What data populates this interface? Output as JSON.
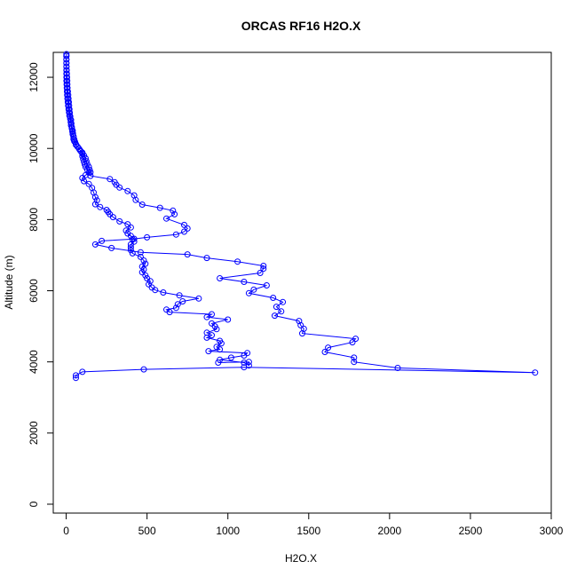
{
  "chart_data": {
    "type": "line",
    "title": "ORCAS RF16 H2O.X",
    "xlabel": "H2O.X",
    "ylabel": "Altitude (m)",
    "xlim": [
      -80,
      3000
    ],
    "ylim": [
      -250,
      12700
    ],
    "x_ticks": [
      0,
      500,
      1000,
      1500,
      2000,
      2500,
      3000
    ],
    "y_ticks": [
      0,
      2000,
      4000,
      6000,
      8000,
      10000,
      12000
    ],
    "grid": false,
    "legend": "none",
    "series": [
      {
        "color": "#0000ff",
        "marker": "open-circle",
        "line": true,
        "points": [
          [
            60,
            3550
          ],
          [
            60,
            3620
          ],
          [
            100,
            3720
          ],
          [
            480,
            3790
          ],
          [
            1100,
            3850
          ],
          [
            2900,
            3700
          ],
          [
            2050,
            3830
          ],
          [
            1780,
            4000
          ],
          [
            1780,
            4120
          ],
          [
            1600,
            4280
          ],
          [
            1620,
            4400
          ],
          [
            1770,
            4550
          ],
          [
            1790,
            4650
          ],
          [
            1460,
            4800
          ],
          [
            1470,
            4930
          ],
          [
            1450,
            5030
          ],
          [
            1440,
            5150
          ],
          [
            1290,
            5300
          ],
          [
            1330,
            5420
          ],
          [
            1300,
            5550
          ],
          [
            1340,
            5680
          ],
          [
            1280,
            5800
          ],
          [
            1130,
            5930
          ],
          [
            1160,
            6030
          ],
          [
            1240,
            6150
          ],
          [
            1100,
            6250
          ],
          [
            950,
            6350
          ],
          [
            1200,
            6500
          ],
          [
            1220,
            6620
          ],
          [
            1220,
            6700
          ],
          [
            1060,
            6820
          ],
          [
            870,
            6920
          ],
          [
            750,
            7020
          ],
          [
            460,
            7080
          ],
          [
            280,
            7200
          ],
          [
            180,
            7300
          ],
          [
            220,
            7400
          ],
          [
            410,
            7450
          ],
          [
            500,
            7500
          ],
          [
            680,
            7580
          ],
          [
            730,
            7660
          ],
          [
            750,
            7750
          ],
          [
            730,
            7850
          ],
          [
            620,
            8030
          ],
          [
            670,
            8150
          ],
          [
            660,
            8250
          ],
          [
            580,
            8330
          ],
          [
            470,
            8420
          ],
          [
            430,
            8550
          ],
          [
            420,
            8680
          ],
          [
            380,
            8800
          ],
          [
            330,
            8900
          ],
          [
            310,
            8980
          ],
          [
            300,
            9050
          ],
          [
            270,
            9140
          ],
          [
            150,
            9230
          ],
          [
            140,
            9320
          ],
          [
            130,
            9400
          ],
          [
            120,
            9480
          ],
          [
            115,
            9550
          ],
          [
            110,
            9620
          ],
          [
            105,
            9700
          ],
          [
            100,
            9780
          ],
          [
            100,
            9850
          ],
          [
            90,
            9920
          ],
          [
            80,
            9990
          ],
          [
            70,
            10050
          ],
          [
            60,
            10120
          ],
          [
            50,
            10200
          ],
          [
            45,
            10260
          ],
          [
            45,
            10330
          ],
          [
            40,
            10400
          ],
          [
            38,
            10480
          ],
          [
            35,
            10560
          ],
          [
            30,
            10650
          ],
          [
            28,
            10740
          ],
          [
            25,
            10830
          ],
          [
            20,
            10920
          ],
          [
            18,
            11010
          ],
          [
            15,
            11100
          ],
          [
            12,
            11200
          ],
          [
            10,
            11300
          ],
          [
            8,
            11400
          ],
          [
            6,
            11500
          ],
          [
            5,
            11600
          ],
          [
            4,
            11700
          ],
          [
            3,
            11800
          ],
          [
            2,
            11900
          ],
          [
            2,
            12000
          ],
          [
            1,
            12100
          ],
          [
            1,
            12200
          ],
          [
            1,
            12300
          ],
          [
            1,
            12400
          ],
          [
            1,
            12500
          ],
          [
            1,
            12600
          ],
          [
            1,
            12650
          ],
          [
            1,
            12600
          ],
          [
            1,
            12500
          ],
          [
            1,
            12400
          ],
          [
            2,
            12300
          ],
          [
            3,
            12200
          ],
          [
            4,
            12100
          ],
          [
            5,
            12000
          ],
          [
            6,
            11900
          ],
          [
            7,
            11800
          ],
          [
            8,
            11700
          ],
          [
            10,
            11600
          ],
          [
            12,
            11500
          ],
          [
            14,
            11400
          ],
          [
            16,
            11300
          ],
          [
            18,
            11200
          ],
          [
            20,
            11100
          ],
          [
            22,
            11000
          ],
          [
            25,
            10900
          ],
          [
            30,
            10800
          ],
          [
            32,
            10700
          ],
          [
            35,
            10600
          ],
          [
            40,
            10500
          ],
          [
            42,
            10420
          ],
          [
            45,
            10340
          ],
          [
            50,
            10250
          ],
          [
            55,
            10180
          ],
          [
            60,
            10100
          ],
          [
            70,
            10050
          ],
          [
            85,
            9950
          ],
          [
            100,
            9880
          ],
          [
            110,
            9800
          ],
          [
            120,
            9720
          ],
          [
            125,
            9640
          ],
          [
            130,
            9560
          ],
          [
            140,
            9480
          ],
          [
            145,
            9400
          ],
          [
            150,
            9330
          ],
          [
            120,
            9250
          ],
          [
            100,
            9170
          ],
          [
            110,
            9080
          ],
          [
            140,
            9000
          ],
          [
            160,
            8890
          ],
          [
            170,
            8760
          ],
          [
            180,
            8630
          ],
          [
            190,
            8540
          ],
          [
            180,
            8430
          ],
          [
            210,
            8350
          ],
          [
            250,
            8270
          ],
          [
            260,
            8210
          ],
          [
            270,
            8150
          ],
          [
            290,
            8070
          ],
          [
            330,
            7950
          ],
          [
            380,
            7870
          ],
          [
            400,
            7780
          ],
          [
            370,
            7690
          ],
          [
            380,
            7610
          ],
          [
            400,
            7540
          ],
          [
            420,
            7460
          ],
          [
            420,
            7380
          ],
          [
            400,
            7300
          ],
          [
            400,
            7220
          ],
          [
            400,
            7140
          ],
          [
            410,
            7050
          ],
          [
            460,
            6950
          ],
          [
            480,
            6850
          ],
          [
            490,
            6760
          ],
          [
            470,
            6680
          ],
          [
            480,
            6600
          ],
          [
            470,
            6520
          ],
          [
            490,
            6430
          ],
          [
            500,
            6350
          ],
          [
            520,
            6270
          ],
          [
            510,
            6180
          ],
          [
            530,
            6090
          ],
          [
            550,
            6020
          ],
          [
            600,
            5950
          ],
          [
            700,
            5870
          ],
          [
            820,
            5780
          ],
          [
            720,
            5700
          ],
          [
            690,
            5620
          ],
          [
            680,
            5520
          ],
          [
            620,
            5470
          ],
          [
            640,
            5400
          ],
          [
            900,
            5340
          ],
          [
            870,
            5260
          ],
          [
            1000,
            5190
          ],
          [
            900,
            5080
          ],
          [
            920,
            5000
          ],
          [
            930,
            4920
          ],
          [
            870,
            4820
          ],
          [
            900,
            4750
          ],
          [
            870,
            4680
          ],
          [
            950,
            4590
          ],
          [
            960,
            4520
          ],
          [
            930,
            4420
          ],
          [
            950,
            4350
          ],
          [
            880,
            4300
          ],
          [
            1120,
            4250
          ],
          [
            1100,
            4180
          ],
          [
            1020,
            4120
          ],
          [
            950,
            4060
          ],
          [
            1100,
            3980
          ],
          [
            1130,
            3900
          ],
          [
            1130,
            4000
          ],
          [
            940,
            3980
          ]
        ]
      }
    ]
  }
}
